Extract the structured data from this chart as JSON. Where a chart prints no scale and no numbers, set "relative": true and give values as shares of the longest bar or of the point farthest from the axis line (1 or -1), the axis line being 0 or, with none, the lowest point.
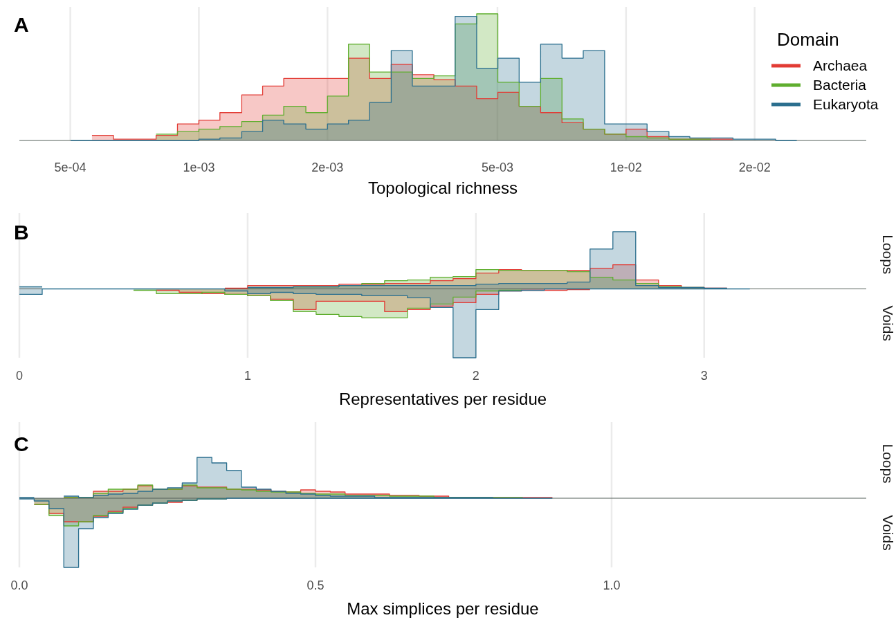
{
  "chart_data": [
    {
      "type": "area",
      "title": "A",
      "xlabel": "Topological richness",
      "legend_title": "Domain",
      "legend": "right",
      "relative": true,
      "log": "x",
      "grid": "x",
      "xlim": [
        0.00038,
        0.0365
      ],
      "xticks": [
        {
          "value": 0.0005,
          "label": "5e-04"
        },
        {
          "value": 0.001,
          "label": "1e-03"
        },
        {
          "value": 0.002,
          "label": "2e-03"
        },
        {
          "value": 0.005,
          "label": "5e-03"
        },
        {
          "value": 0.01,
          "label": "1e-02"
        },
        {
          "value": 0.02,
          "label": "2e-02"
        }
      ],
      "x": [
        0.000501,
        0.000562,
        0.000562,
        0.000631,
        0.000631,
        0.000708,
        0.000708,
        0.000794,
        0.000794,
        0.000891,
        0.000891,
        0.001,
        0.001,
        0.00112,
        0.00112,
        0.00126,
        0.00126,
        0.00141,
        0.00141,
        0.00158,
        0.00158,
        0.00178,
        0.00178,
        0.002,
        0.002,
        0.00224,
        0.00224,
        0.00251,
        0.00251,
        0.00282,
        0.00282,
        0.00316,
        0.00316,
        0.00355,
        0.00355,
        0.00398,
        0.00398,
        0.00447,
        0.00447,
        0.00501,
        0.00501,
        0.00562,
        0.00562,
        0.00631,
        0.00631,
        0.00708,
        0.00708,
        0.00794,
        0.00794,
        0.00891,
        0.00891,
        0.01,
        0.01,
        0.0112,
        0.0112,
        0.0126,
        0.0126,
        0.0141,
        0.0141,
        0.0158,
        0.0158,
        0.0178,
        0.0178,
        0.02,
        0.02,
        0.0224,
        0.0224,
        0.0251
      ],
      "series": [
        {
          "name": "Archaea",
          "color": "#e23b34",
          "values": [
            null,
            null,
            0.04,
            0.04,
            0.01,
            0.01,
            0.01,
            0.01,
            0.04,
            0.04,
            0.13,
            0.13,
            0.16,
            0.16,
            0.22,
            0.22,
            0.36,
            0.36,
            0.43,
            0.43,
            0.49,
            0.49,
            0.49,
            0.49,
            0.49,
            0.49,
            0.65,
            0.65,
            0.49,
            0.49,
            0.6,
            0.6,
            0.52,
            0.52,
            0.48,
            0.48,
            0.43,
            0.43,
            0.33,
            0.33,
            0.38,
            0.38,
            0.27,
            0.27,
            0.22,
            0.22,
            0.14,
            0.14,
            0.09,
            0.09,
            0.05,
            0.05,
            0.09,
            0.09,
            0.03,
            0.03,
            0.01,
            0.01,
            0.01,
            0.01,
            0.01,
            0.01,
            null,
            null,
            null,
            null,
            null,
            null
          ]
        },
        {
          "name": "Bacteria",
          "color": "#5fae2e",
          "values": [
            null,
            null,
            null,
            null,
            null,
            null,
            null,
            null,
            0.05,
            0.05,
            0.07,
            0.07,
            0.09,
            0.09,
            0.11,
            0.11,
            0.15,
            0.15,
            0.2,
            0.2,
            0.27,
            0.27,
            0.22,
            0.22,
            0.35,
            0.35,
            0.76,
            0.76,
            0.54,
            0.54,
            0.54,
            0.54,
            0.49,
            0.49,
            0.51,
            0.51,
            0.92,
            0.92,
            1,
            1,
            0.46,
            0.46,
            0.27,
            0.27,
            0.49,
            0.49,
            0.17,
            0.17,
            0.09,
            0.09,
            0.05,
            0.05,
            0.03,
            0.03,
            0.02,
            0.02,
            0.01,
            0.01,
            0.01,
            0.01,
            null,
            null,
            null,
            null,
            null,
            null,
            null,
            null
          ]
        },
        {
          "name": "Eukaryota",
          "color": "#2b6f8e",
          "values": [
            0,
            0,
            0,
            0,
            0,
            0,
            0,
            0,
            0,
            0,
            0,
            0,
            0.01,
            0.01,
            0.02,
            0.02,
            0.07,
            0.07,
            0.16,
            0.16,
            0.13,
            0.13,
            0.09,
            0.09,
            0.13,
            0.13,
            0.16,
            0.16,
            0.3,
            0.3,
            0.71,
            0.71,
            0.43,
            0.43,
            0.43,
            0.43,
            0.98,
            0.98,
            0.57,
            0.57,
            0.65,
            0.65,
            0.46,
            0.46,
            0.76,
            0.76,
            0.65,
            0.65,
            0.71,
            0.71,
            0.13,
            0.13,
            0.13,
            0.13,
            0.07,
            0.07,
            0.03,
            0.03,
            0.02,
            0.02,
            0.02,
            0.02,
            0.01,
            0.01,
            0.01,
            0.01,
            0,
            0
          ]
        }
      ]
    },
    {
      "type": "area",
      "title": "B",
      "xlabel": "Representatives per residue",
      "annotations": [
        "Loops",
        "Voids"
      ],
      "relative": true,
      "grid": "x",
      "xlim": [
        0,
        3.71
      ],
      "xticks": [
        0,
        1,
        2,
        3
      ],
      "x": [
        0,
        0.1,
        0.1,
        0.2,
        0.2,
        0.3,
        0.3,
        0.4,
        0.4,
        0.5,
        0.5,
        0.6,
        0.6,
        0.7,
        0.7,
        0.8,
        0.8,
        0.9,
        0.9,
        1,
        1,
        1.1,
        1.1,
        1.2,
        1.2,
        1.3,
        1.3,
        1.4,
        1.4,
        1.5,
        1.5,
        1.6,
        1.6,
        1.7,
        1.7,
        1.8,
        1.8,
        1.9,
        1.9,
        2,
        2,
        2.1,
        2.1,
        2.2,
        2.2,
        2.3,
        2.3,
        2.4,
        2.4,
        2.5,
        2.5,
        2.6,
        2.6,
        2.7,
        2.7,
        2.8,
        2.8,
        2.9,
        2.9,
        3,
        3,
        3.1,
        3.1,
        3.2
      ],
      "series": [
        {
          "color": "#e23b34",
          "values": [
            null,
            null,
            null,
            null,
            null,
            null,
            null,
            null,
            null,
            null,
            null,
            null,
            null,
            null,
            null,
            null,
            null,
            null,
            0.01,
            0.01,
            0.05,
            0.05,
            0.05,
            0.05,
            0.05,
            0.05,
            0.05,
            0.05,
            0.07,
            0.07,
            0.07,
            0.07,
            0.08,
            0.08,
            0.08,
            0.08,
            0.12,
            0.12,
            0.15,
            0.15,
            0.23,
            0.23,
            0.28,
            0.28,
            0.27,
            0.27,
            0.27,
            0.27,
            0.27,
            0.27,
            0.3,
            0.3,
            0.35,
            0.35,
            0.13,
            0.13,
            0.05,
            0.05,
            0.02,
            0.02,
            0.01,
            0.01,
            null,
            null
          ]
        },
        {
          "color": "#5fae2e",
          "values": [
            null,
            null,
            null,
            null,
            null,
            null,
            null,
            null,
            null,
            null,
            null,
            null,
            null,
            null,
            null,
            null,
            null,
            null,
            null,
            null,
            0.02,
            0.02,
            0.02,
            0.02,
            0.03,
            0.03,
            0.03,
            0.03,
            0.05,
            0.05,
            0.08,
            0.08,
            0.12,
            0.12,
            0.13,
            0.13,
            0.17,
            0.17,
            0.18,
            0.18,
            0.28,
            0.28,
            0.27,
            0.27,
            0.27,
            0.27,
            0.27,
            0.27,
            0.25,
            0.25,
            0.17,
            0.17,
            0.13,
            0.13,
            0.08,
            0.08,
            0.03,
            0.03,
            0.02,
            0.02,
            null,
            null,
            null,
            null
          ]
        },
        {
          "color": "#2b6f8e",
          "values": [
            0.03,
            0.03,
            null,
            null,
            null,
            null,
            null,
            null,
            null,
            null,
            null,
            null,
            null,
            null,
            null,
            null,
            null,
            null,
            null,
            null,
            0.02,
            0.02,
            0.02,
            0.02,
            0.03,
            0.03,
            0.03,
            0.03,
            0.05,
            0.05,
            0.05,
            0.05,
            0.05,
            0.05,
            0.05,
            0.05,
            0.05,
            0.05,
            0.05,
            0.05,
            0.07,
            0.07,
            0.08,
            0.08,
            0.08,
            0.08,
            0.08,
            0.08,
            0.1,
            0.1,
            0.58,
            0.58,
            0.83,
            0.83,
            0.05,
            0.05,
            0.02,
            0.02,
            0.02,
            0.02,
            0.01,
            0.01,
            null,
            null
          ]
        },
        {
          "color": "#e23b35",
          "values": [
            null,
            null,
            null,
            null,
            null,
            null,
            null,
            null,
            null,
            null,
            null,
            null,
            -0.02,
            -0.02,
            -0.05,
            -0.05,
            -0.07,
            -0.07,
            -0.08,
            -0.08,
            -0.1,
            -0.1,
            -0.15,
            -0.15,
            -0.3,
            -0.3,
            -0.18,
            -0.18,
            -0.18,
            -0.18,
            -0.18,
            -0.18,
            -0.33,
            -0.33,
            -0.3,
            -0.3,
            -0.25,
            -0.25,
            -0.2,
            -0.2,
            -0.08,
            -0.08,
            -0.03,
            -0.03,
            -0.02,
            -0.02,
            -0.02,
            -0.02,
            -0.01,
            -0.01,
            null,
            null,
            null,
            null,
            null,
            null,
            null,
            null,
            null,
            null,
            null,
            null,
            null,
            null
          ]
        },
        {
          "color": "#5fae2f",
          "values": [
            null,
            null,
            null,
            null,
            null,
            null,
            null,
            null,
            null,
            null,
            -0.02,
            -0.02,
            -0.07,
            -0.07,
            -0.07,
            -0.07,
            -0.05,
            -0.05,
            -0.08,
            -0.08,
            -0.1,
            -0.1,
            -0.17,
            -0.17,
            -0.33,
            -0.33,
            -0.37,
            -0.37,
            -0.4,
            -0.4,
            -0.42,
            -0.42,
            -0.42,
            -0.42,
            -0.28,
            -0.28,
            -0.22,
            -0.22,
            -0.12,
            -0.12,
            -0.03,
            -0.03,
            -0.02,
            -0.02,
            null,
            null,
            null,
            null,
            null,
            null,
            null,
            null,
            null,
            null,
            null,
            null,
            null,
            null,
            null,
            null,
            null,
            null,
            null,
            null
          ]
        },
        {
          "color": "#2b6f8f",
          "values": [
            -0.08,
            -0.08,
            0,
            0,
            0,
            0,
            0,
            0,
            0,
            0,
            0,
            0,
            0,
            0,
            0,
            0,
            0,
            0,
            -0.03,
            -0.03,
            -0.07,
            -0.07,
            -0.05,
            -0.05,
            -0.07,
            -0.07,
            -0.08,
            -0.08,
            -0.08,
            -0.08,
            -0.1,
            -0.1,
            -0.1,
            -0.1,
            -0.13,
            -0.13,
            -0.27,
            -0.27,
            -1,
            -1,
            -0.3,
            -0.3,
            -0.03,
            -0.03,
            -0.02,
            -0.02,
            0,
            0,
            0,
            0,
            0,
            0,
            0,
            0,
            0,
            0,
            0,
            0,
            0,
            0,
            0,
            0,
            0,
            0
          ]
        }
      ]
    },
    {
      "type": "area",
      "title": "C",
      "xlabel": "Max simplices per residue",
      "annotations": [
        "Loops",
        "Voids"
      ],
      "relative": true,
      "grid": "x",
      "xlim": [
        0,
        1.43
      ],
      "xticks": [
        {
          "value": 0,
          "label": "0.0"
        },
        {
          "value": 0.5,
          "label": "0.5"
        },
        {
          "value": 1,
          "label": "1.0"
        }
      ],
      "x": [
        0,
        0.025,
        0.025,
        0.05,
        0.05,
        0.075,
        0.075,
        0.1,
        0.1,
        0.125,
        0.125,
        0.15,
        0.15,
        0.175,
        0.175,
        0.2,
        0.2,
        0.225,
        0.225,
        0.25,
        0.25,
        0.275,
        0.275,
        0.3,
        0.3,
        0.325,
        0.325,
        0.35,
        0.35,
        0.375,
        0.375,
        0.4,
        0.4,
        0.425,
        0.425,
        0.45,
        0.45,
        0.475,
        0.475,
        0.5,
        0.5,
        0.525,
        0.525,
        0.55,
        0.55,
        0.575,
        0.575,
        0.6,
        0.6,
        0.625,
        0.625,
        0.65,
        0.65,
        0.675,
        0.675,
        0.7,
        0.7,
        0.725,
        0.725,
        0.75,
        0.75,
        0.775,
        0.775,
        0.8,
        0.8,
        0.825,
        0.825,
        0.85,
        0.85,
        0.875,
        0.875,
        0.9
      ],
      "series": [
        {
          "color": "#e23b34",
          "values": [
            null,
            null,
            null,
            null,
            null,
            null,
            0.01,
            0.01,
            0.01,
            0.01,
            0.1,
            0.1,
            0.1,
            0.1,
            0.13,
            0.13,
            0.18,
            0.18,
            0.13,
            0.13,
            0.13,
            0.13,
            0.18,
            0.18,
            0.16,
            0.16,
            0.16,
            0.16,
            0.13,
            0.13,
            0.13,
            0.13,
            0.12,
            0.12,
            0.1,
            0.1,
            0.09,
            0.09,
            0.12,
            0.12,
            0.1,
            0.1,
            0.09,
            0.09,
            0.06,
            0.06,
            0.06,
            0.06,
            0.06,
            0.06,
            0.04,
            0.04,
            0.04,
            0.04,
            0.03,
            0.03,
            0.03,
            0.03,
            0.01,
            0.01,
            0.01,
            0.01,
            0.01,
            0.01,
            0.01,
            0.01,
            0.01,
            0.01,
            0.01,
            0.01,
            0.01,
            0.01
          ]
        },
        {
          "color": "#5fae2e",
          "values": [
            null,
            null,
            null,
            null,
            null,
            null,
            0.01,
            0.01,
            0.01,
            0.01,
            0.07,
            0.07,
            0.13,
            0.13,
            0.13,
            0.13,
            0.19,
            0.19,
            0.13,
            0.13,
            0.13,
            0.13,
            0.19,
            0.19,
            0.15,
            0.15,
            0.15,
            0.15,
            0.13,
            0.13,
            0.12,
            0.12,
            0.1,
            0.1,
            0.09,
            0.09,
            0.09,
            0.09,
            0.07,
            0.07,
            0.06,
            0.06,
            0.06,
            0.06,
            0.04,
            0.04,
            0.04,
            0.04,
            0.04,
            0.04,
            0.03,
            0.03,
            0.03,
            0.03,
            0.03,
            0.03,
            0.01,
            0.01,
            0.01,
            0.01,
            0.01,
            0.01,
            0.01,
            0.01,
            0.01,
            0.01,
            0.01,
            0.01,
            null,
            null,
            null,
            null
          ]
        },
        {
          "color": "#2b6f8e",
          "values": [
            0.01,
            0.01,
            null,
            null,
            null,
            null,
            0.03,
            0.03,
            0.01,
            0.01,
            0.04,
            0.04,
            0.06,
            0.06,
            0.07,
            0.07,
            0.1,
            0.1,
            0.13,
            0.13,
            0.15,
            0.15,
            0.22,
            0.22,
            0.59,
            0.59,
            0.51,
            0.51,
            0.4,
            0.4,
            0.16,
            0.16,
            0.13,
            0.13,
            0.1,
            0.1,
            0.07,
            0.07,
            0.06,
            0.06,
            0.04,
            0.04,
            0.03,
            0.03,
            0.03,
            0.03,
            0.03,
            0.03,
            0.01,
            0.01,
            0.01,
            0.01,
            0.01,
            0.01,
            0.01,
            0.01,
            0.01,
            0.01,
            0.01,
            0.01,
            0.01,
            0.01,
            0.01,
            0.01,
            null,
            null,
            null,
            null,
            null,
            null,
            null,
            null
          ]
        },
        {
          "color": "#e23b35",
          "values": [
            null,
            null,
            -0.09,
            -0.09,
            -0.22,
            -0.22,
            -0.34,
            -0.34,
            -0.34,
            -0.34,
            -0.26,
            -0.26,
            -0.19,
            -0.19,
            -0.13,
            -0.13,
            -0.1,
            -0.1,
            -0.07,
            -0.07,
            -0.06,
            -0.06,
            -0.03,
            -0.03,
            -0.01,
            -0.01,
            -0.01,
            -0.01,
            null,
            null,
            null,
            null,
            null,
            null,
            null,
            null,
            null,
            null,
            null,
            null,
            null,
            null,
            null,
            null,
            null,
            null,
            null,
            null,
            null,
            null,
            null,
            null,
            null,
            null,
            null,
            null,
            null,
            null,
            null,
            null,
            null,
            null,
            null,
            null,
            null,
            null,
            null,
            null,
            null,
            null,
            null,
            null
          ]
        },
        {
          "color": "#5fae2f",
          "values": [
            null,
            null,
            -0.09,
            -0.09,
            -0.25,
            -0.25,
            -0.4,
            -0.4,
            -0.34,
            -0.34,
            -0.25,
            -0.25,
            -0.21,
            -0.21,
            -0.15,
            -0.15,
            -0.1,
            -0.1,
            -0.07,
            -0.07,
            -0.04,
            -0.04,
            -0.03,
            -0.03,
            -0.01,
            -0.01,
            -0.01,
            -0.01,
            null,
            null,
            null,
            null,
            null,
            null,
            null,
            null,
            null,
            null,
            null,
            null,
            null,
            null,
            null,
            null,
            null,
            null,
            null,
            null,
            null,
            null,
            null,
            null,
            null,
            null,
            null,
            null,
            null,
            null,
            null,
            null,
            null,
            null,
            null,
            null,
            null,
            null,
            null,
            null,
            null,
            null,
            null,
            null
          ]
        },
        {
          "color": "#2b6f8f",
          "values": [
            -0.01,
            -0.01,
            -0.04,
            -0.04,
            -0.15,
            -0.15,
            -1,
            -1,
            -0.44,
            -0.44,
            -0.28,
            -0.28,
            -0.22,
            -0.22,
            -0.16,
            -0.16,
            -0.1,
            -0.1,
            -0.07,
            -0.07,
            -0.04,
            -0.04,
            -0.03,
            -0.03,
            -0.01,
            -0.01,
            -0.01,
            -0.01,
            0,
            0,
            0,
            0,
            0,
            0,
            0,
            0,
            0,
            0,
            0,
            0,
            0,
            0,
            0,
            0,
            0,
            0,
            0,
            0,
            0,
            0,
            0,
            0,
            0,
            0,
            0,
            0,
            0,
            0,
            0,
            0,
            0,
            0,
            0,
            0,
            0,
            0,
            0,
            0,
            0,
            0,
            0,
            0
          ]
        }
      ]
    }
  ]
}
